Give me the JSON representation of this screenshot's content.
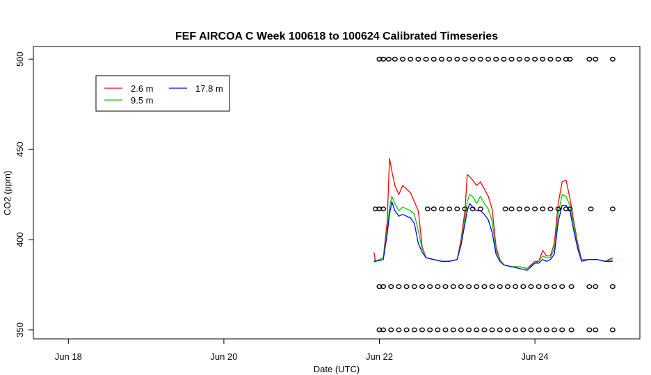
{
  "chart_data": {
    "type": "line",
    "title": "FEF AIRCOA C  Week 100618 to 100624  Calibrated Timeseries",
    "xlabel": "Date (UTC)",
    "ylabel": "CO2 (ppm)",
    "x_ticks": [
      "Jun 18",
      "Jun 20",
      "Jun 22",
      "Jun 24"
    ],
    "x_tick_days": [
      18,
      20,
      22,
      24
    ],
    "xlim": [
      17.55,
      25.35
    ],
    "y_ticks": [
      350,
      400,
      450,
      500
    ],
    "ylim": [
      345,
      507
    ],
    "grid": false,
    "legend_position": "top-left",
    "legend": [
      {
        "label": "2.6 m",
        "color": "#ff0000"
      },
      {
        "label": "9.5 m",
        "color": "#00cc00"
      },
      {
        "label": "17.8 m",
        "color": "#0000ff"
      }
    ],
    "series": [
      {
        "name": "2.6 m",
        "color": "#ff0000",
        "x": [
          21.93,
          21.95,
          22.05,
          22.1,
          22.13,
          22.16,
          22.2,
          22.25,
          22.3,
          22.35,
          22.4,
          22.45,
          22.5,
          22.55,
          22.6,
          22.7,
          22.8,
          22.9,
          23.0,
          23.05,
          23.1,
          23.13,
          23.16,
          23.2,
          23.25,
          23.3,
          23.35,
          23.4,
          23.45,
          23.5,
          23.55,
          23.6,
          23.7,
          23.8,
          23.9,
          24.0,
          24.05,
          24.1,
          24.15,
          24.2,
          24.25,
          24.3,
          24.35,
          24.4,
          24.45,
          24.5,
          24.55,
          24.6,
          24.7,
          24.8,
          24.9,
          25.0
        ],
        "y": [
          393,
          388,
          390,
          410,
          445,
          438,
          430,
          425,
          430,
          428,
          426,
          421,
          416,
          396,
          390,
          389,
          388,
          388,
          389,
          400,
          416,
          436,
          435,
          433,
          430,
          432,
          428,
          424,
          417,
          396,
          389,
          386,
          385,
          385,
          384,
          388,
          388,
          394,
          391,
          391,
          398,
          420,
          432,
          433,
          423,
          410,
          398,
          389,
          389,
          389,
          388,
          390
        ]
      },
      {
        "name": "9.5 m",
        "color": "#00cc00",
        "x": [
          21.93,
          21.95,
          22.05,
          22.1,
          22.13,
          22.16,
          22.2,
          22.25,
          22.3,
          22.35,
          22.4,
          22.45,
          22.5,
          22.55,
          22.6,
          22.7,
          22.8,
          22.9,
          23.0,
          23.05,
          23.1,
          23.13,
          23.16,
          23.2,
          23.25,
          23.3,
          23.35,
          23.4,
          23.45,
          23.5,
          23.55,
          23.6,
          23.7,
          23.8,
          23.9,
          24.0,
          24.05,
          24.1,
          24.15,
          24.2,
          24.25,
          24.3,
          24.35,
          24.4,
          24.45,
          24.5,
          24.55,
          24.6,
          24.7,
          24.8,
          24.9,
          25.0
        ],
        "y": [
          389,
          388,
          390,
          405,
          418,
          424,
          420,
          416,
          418,
          417,
          416,
          414,
          405,
          395,
          390,
          389,
          388,
          388,
          389,
          398,
          412,
          421,
          425,
          424,
          420,
          424,
          420,
          417,
          410,
          394,
          389,
          386,
          385,
          385,
          384,
          387,
          388,
          391,
          390,
          390,
          395,
          414,
          425,
          424,
          419,
          408,
          396,
          389,
          389,
          389,
          388,
          389
        ]
      },
      {
        "name": "17.8 m",
        "color": "#0000ff",
        "x": [
          21.93,
          21.95,
          22.05,
          22.1,
          22.13,
          22.16,
          22.2,
          22.25,
          22.3,
          22.35,
          22.4,
          22.45,
          22.5,
          22.55,
          22.6,
          22.7,
          22.8,
          22.9,
          23.0,
          23.05,
          23.1,
          23.13,
          23.16,
          23.2,
          23.25,
          23.3,
          23.35,
          23.4,
          23.45,
          23.5,
          23.55,
          23.6,
          23.7,
          23.8,
          23.9,
          24.0,
          24.05,
          24.1,
          24.15,
          24.2,
          24.25,
          24.3,
          24.35,
          24.4,
          24.45,
          24.5,
          24.55,
          24.6,
          24.7,
          24.8,
          24.9,
          25.0
        ],
        "y": [
          388,
          388,
          389,
          403,
          414,
          421,
          416,
          413,
          414,
          413,
          412,
          409,
          398,
          393,
          390,
          389,
          388,
          388,
          389,
          397,
          409,
          416,
          420,
          418,
          416,
          416,
          414,
          411,
          404,
          392,
          388,
          386,
          385,
          384,
          383,
          387,
          387,
          389,
          388,
          389,
          392,
          410,
          419,
          419,
          416,
          405,
          395,
          388,
          389,
          389,
          388,
          388
        ]
      },
      {
        "name": "",
        "kind": "markers",
        "x": [
          22.0,
          22.05,
          22.12,
          22.2,
          22.3,
          22.4,
          22.5,
          22.6,
          22.7,
          22.8,
          22.9,
          23.0,
          23.1,
          23.2,
          23.3,
          23.4,
          23.5,
          23.6,
          23.7,
          23.8,
          23.9,
          24.0,
          24.1,
          24.2,
          24.3,
          24.4,
          24.45,
          24.7,
          24.78,
          25.0
        ],
        "y": [
          500,
          500,
          500,
          500,
          500,
          500,
          500,
          500,
          500,
          500,
          500,
          500,
          500,
          500,
          500,
          500,
          500,
          500,
          500,
          500,
          500,
          500,
          500,
          500,
          500,
          500,
          500,
          500,
          500,
          500
        ]
      },
      {
        "name": "",
        "kind": "markers",
        "x": [
          21.95,
          22.0,
          22.05,
          22.62,
          22.7,
          22.8,
          22.9,
          23.0,
          23.1,
          23.2,
          23.3,
          23.62,
          23.7,
          23.8,
          23.9,
          24.0,
          24.1,
          24.2,
          24.3,
          24.4,
          24.45,
          24.72,
          25.0
        ],
        "y": [
          417,
          417,
          417,
          417,
          417,
          417,
          417,
          417,
          417,
          417,
          417,
          417,
          417,
          417,
          417,
          417,
          417,
          417,
          417,
          417,
          417,
          417,
          417
        ]
      },
      {
        "name": "",
        "kind": "markers",
        "x": [
          22.0,
          22.05,
          22.15,
          22.25,
          22.35,
          22.45,
          22.55,
          22.65,
          22.75,
          22.85,
          22.95,
          23.05,
          23.15,
          23.25,
          23.35,
          23.45,
          23.55,
          23.65,
          23.75,
          23.85,
          23.95,
          24.05,
          24.15,
          24.25,
          24.35,
          24.47,
          24.7,
          24.78,
          25.0
        ],
        "y": [
          374,
          374,
          374,
          374,
          374,
          374,
          374,
          374,
          374,
          374,
          374,
          374,
          374,
          374,
          374,
          374,
          374,
          374,
          374,
          374,
          374,
          374,
          374,
          374,
          374,
          374,
          374,
          374,
          374
        ]
      },
      {
        "name": "",
        "kind": "markers",
        "x": [
          22.0,
          22.05,
          22.15,
          22.25,
          22.35,
          22.45,
          22.55,
          22.65,
          22.75,
          22.85,
          22.95,
          23.05,
          23.15,
          23.25,
          23.35,
          23.45,
          23.55,
          23.65,
          23.75,
          23.85,
          23.95,
          24.05,
          24.15,
          24.25,
          24.35,
          24.47,
          24.7,
          24.78,
          25.0
        ],
        "y": [
          350,
          350,
          350,
          350,
          350,
          350,
          350,
          350,
          350,
          350,
          350,
          350,
          350,
          350,
          350,
          350,
          350,
          350,
          350,
          350,
          350,
          350,
          350,
          350,
          350,
          350,
          350,
          350,
          350
        ]
      }
    ]
  }
}
